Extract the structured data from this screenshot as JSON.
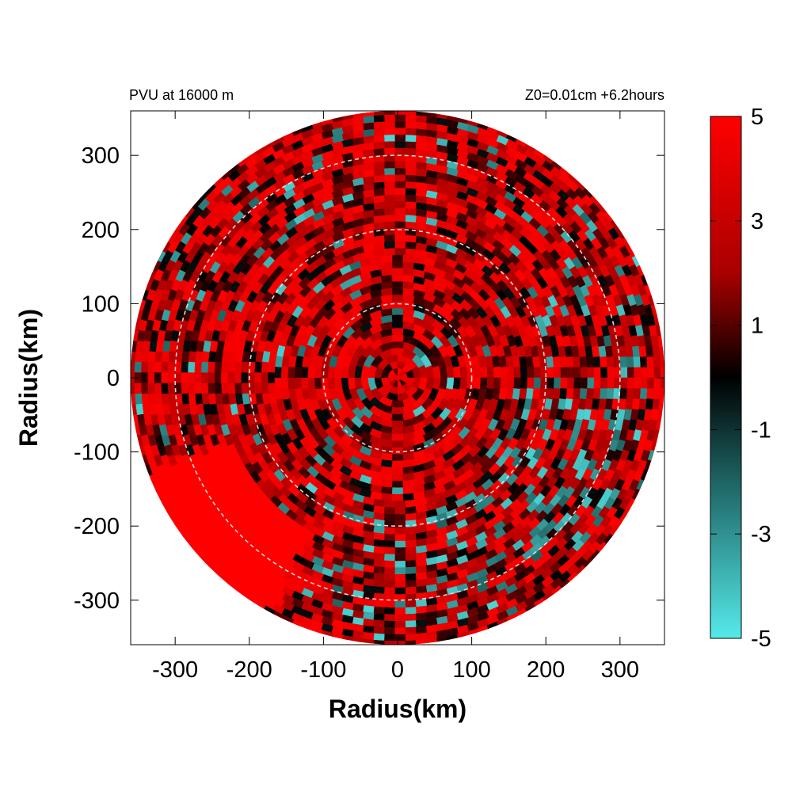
{
  "chart_data": {
    "type": "heatmap",
    "title_left": "PVU at 16000 m",
    "title_right": "Z0=0.01cm  +6.2hours",
    "xlabel": "Radius(km)",
    "ylabel": "Radius(km)",
    "xlim": [
      -360,
      360
    ],
    "ylim": [
      -360,
      360
    ],
    "x_ticks": [
      -300,
      -200,
      -100,
      0,
      100,
      200,
      300
    ],
    "y_ticks": [
      300,
      200,
      100,
      0,
      -100,
      -200,
      -300
    ],
    "domain_radius_km": 360,
    "reference_circles_km": [
      100,
      200,
      300
    ],
    "colorbar": {
      "range": [
        -5,
        5
      ],
      "ticks": [
        5,
        3,
        1,
        -1,
        -3,
        -5
      ],
      "colors": {
        "max": "#ff0000",
        "mid_high": "#aa0000",
        "zero": "#000000",
        "mid_low": "#1e6464",
        "min": "#55eaea"
      }
    },
    "field_description_values": {
      "dominant_value": 4,
      "negative_patch_value": -4
    }
  }
}
